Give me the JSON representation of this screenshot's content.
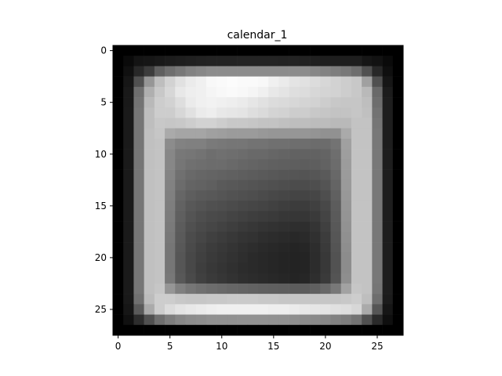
{
  "chart_data": {
    "type": "heatmap",
    "title": "calendar_1",
    "colormap": "gray",
    "rows": 28,
    "cols": 28,
    "x_ticks": [
      0,
      5,
      10,
      15,
      20,
      25
    ],
    "y_ticks": [
      0,
      5,
      10,
      15,
      20,
      25
    ],
    "xlim": [
      -0.5,
      27.5
    ],
    "ylim": [
      27.5,
      -0.5
    ],
    "value_range": [
      0,
      255
    ],
    "values": [
      [
        0,
        0,
        0,
        0,
        0,
        0,
        0,
        0,
        0,
        0,
        0,
        0,
        0,
        0,
        0,
        0,
        0,
        0,
        0,
        0,
        0,
        0,
        0,
        0,
        0,
        0,
        0,
        0
      ],
      [
        0,
        10,
        20,
        22,
        25,
        28,
        30,
        32,
        34,
        35,
        35,
        35,
        36,
        36,
        36,
        36,
        35,
        35,
        34,
        32,
        30,
        30,
        30,
        30,
        22,
        18,
        10,
        0
      ],
      [
        0,
        16,
        40,
        60,
        95,
        110,
        120,
        130,
        135,
        140,
        140,
        140,
        140,
        140,
        140,
        140,
        140,
        140,
        140,
        135,
        130,
        125,
        120,
        110,
        80,
        40,
        15,
        0
      ],
      [
        0,
        22,
        80,
        150,
        190,
        210,
        225,
        235,
        240,
        248,
        250,
        252,
        250,
        250,
        248,
        240,
        235,
        228,
        225,
        220,
        215,
        210,
        205,
        200,
        160,
        80,
        22,
        0
      ],
      [
        0,
        25,
        110,
        175,
        200,
        215,
        232,
        238,
        240,
        245,
        248,
        250,
        248,
        245,
        240,
        232,
        228,
        222,
        220,
        215,
        212,
        210,
        205,
        200,
        185,
        105,
        28,
        0
      ],
      [
        0,
        25,
        115,
        185,
        205,
        210,
        222,
        235,
        240,
        242,
        240,
        238,
        235,
        230,
        225,
        220,
        218,
        215,
        212,
        210,
        205,
        200,
        198,
        198,
        190,
        110,
        30,
        0
      ],
      [
        0,
        26,
        118,
        190,
        205,
        205,
        215,
        225,
        235,
        238,
        232,
        230,
        228,
        222,
        218,
        212,
        210,
        205,
        205,
        200,
        198,
        195,
        195,
        198,
        192,
        115,
        30,
        0
      ],
      [
        0,
        26,
        118,
        190,
        200,
        198,
        200,
        205,
        210,
        210,
        205,
        200,
        200,
        198,
        195,
        195,
        192,
        190,
        190,
        188,
        188,
        185,
        185,
        195,
        195,
        118,
        30,
        0
      ],
      [
        0,
        26,
        118,
        192,
        198,
        170,
        165,
        165,
        165,
        160,
        158,
        155,
        155,
        155,
        152,
        150,
        150,
        150,
        150,
        148,
        145,
        145,
        170,
        195,
        195,
        120,
        30,
        0
      ],
      [
        0,
        26,
        118,
        192,
        195,
        140,
        130,
        128,
        128,
        122,
        120,
        118,
        118,
        115,
        115,
        112,
        112,
        110,
        110,
        108,
        108,
        115,
        160,
        195,
        195,
        120,
        30,
        0
      ],
      [
        0,
        26,
        118,
        192,
        195,
        135,
        120,
        118,
        115,
        110,
        112,
        110,
        108,
        105,
        105,
        102,
        100,
        98,
        98,
        98,
        100,
        110,
        158,
        195,
        195,
        120,
        30,
        0
      ],
      [
        0,
        26,
        118,
        192,
        195,
        135,
        118,
        112,
        110,
        108,
        108,
        105,
        102,
        100,
        98,
        96,
        95,
        94,
        93,
        94,
        98,
        108,
        156,
        195,
        195,
        120,
        30,
        0
      ],
      [
        0,
        26,
        118,
        192,
        195,
        132,
        112,
        105,
        102,
        100,
        98,
        96,
        94,
        92,
        90,
        88,
        86,
        85,
        84,
        86,
        90,
        104,
        155,
        195,
        195,
        120,
        30,
        0
      ],
      [
        0,
        26,
        118,
        192,
        195,
        130,
        108,
        100,
        98,
        95,
        90,
        88,
        86,
        84,
        82,
        80,
        78,
        76,
        76,
        78,
        84,
        100,
        154,
        195,
        195,
        120,
        30,
        0
      ],
      [
        0,
        26,
        118,
        192,
        195,
        128,
        102,
        94,
        90,
        88,
        85,
        82,
        80,
        78,
        75,
        72,
        70,
        68,
        68,
        70,
        78,
        96,
        152,
        195,
        195,
        120,
        30,
        0
      ],
      [
        0,
        26,
        118,
        192,
        195,
        126,
        98,
        88,
        84,
        80,
        78,
        75,
        72,
        70,
        68,
        65,
        62,
        60,
        60,
        64,
        72,
        92,
        150,
        195,
        195,
        120,
        30,
        0
      ],
      [
        0,
        26,
        118,
        192,
        195,
        124,
        95,
        84,
        78,
        74,
        72,
        68,
        65,
        62,
        60,
        58,
        55,
        54,
        54,
        58,
        68,
        90,
        148,
        195,
        195,
        120,
        30,
        0
      ],
      [
        0,
        26,
        118,
        192,
        195,
        122,
        92,
        80,
        74,
        70,
        66,
        62,
        58,
        55,
        52,
        50,
        48,
        46,
        46,
        52,
        64,
        88,
        146,
        195,
        195,
        120,
        30,
        0
      ],
      [
        0,
        26,
        118,
        192,
        195,
        120,
        90,
        76,
        70,
        64,
        60,
        56,
        52,
        50,
        46,
        44,
        42,
        40,
        42,
        48,
        60,
        86,
        144,
        195,
        195,
        120,
        30,
        0
      ],
      [
        0,
        26,
        118,
        192,
        195,
        118,
        88,
        74,
        66,
        60,
        56,
        52,
        48,
        45,
        42,
        40,
        38,
        36,
        38,
        45,
        58,
        84,
        142,
        195,
        195,
        120,
        30,
        0
      ],
      [
        0,
        26,
        118,
        192,
        195,
        118,
        86,
        72,
        64,
        58,
        54,
        50,
        46,
        42,
        40,
        38,
        36,
        35,
        36,
        44,
        56,
        82,
        140,
        195,
        195,
        120,
        30,
        0
      ],
      [
        0,
        26,
        118,
        192,
        195,
        118,
        86,
        72,
        62,
        56,
        52,
        48,
        44,
        42,
        40,
        38,
        36,
        35,
        36,
        44,
        56,
        82,
        140,
        195,
        195,
        120,
        30,
        0
      ],
      [
        0,
        26,
        118,
        192,
        195,
        120,
        88,
        74,
        64,
        58,
        54,
        50,
        46,
        44,
        42,
        40,
        38,
        36,
        38,
        46,
        58,
        84,
        142,
        195,
        195,
        120,
        30,
        0
      ],
      [
        0,
        26,
        118,
        192,
        198,
        150,
        128,
        118,
        112,
        108,
        105,
        102,
        100,
        98,
        96,
        95,
        94,
        92,
        92,
        96,
        104,
        120,
        162,
        198,
        195,
        118,
        30,
        0
      ],
      [
        0,
        25,
        112,
        188,
        205,
        205,
        200,
        198,
        198,
        200,
        200,
        202,
        202,
        202,
        200,
        200,
        198,
        198,
        198,
        198,
        198,
        198,
        200,
        205,
        190,
        110,
        28,
        0
      ],
      [
        0,
        22,
        90,
        170,
        205,
        220,
        228,
        232,
        235,
        238,
        240,
        240,
        240,
        240,
        240,
        238,
        238,
        235,
        232,
        230,
        228,
        225,
        222,
        215,
        170,
        85,
        22,
        0
      ],
      [
        0,
        16,
        45,
        80,
        110,
        125,
        135,
        140,
        142,
        145,
        145,
        145,
        146,
        146,
        146,
        145,
        145,
        142,
        140,
        138,
        135,
        130,
        125,
        115,
        80,
        42,
        15,
        0
      ],
      [
        0,
        0,
        0,
        0,
        0,
        0,
        0,
        0,
        0,
        0,
        0,
        0,
        0,
        0,
        0,
        0,
        0,
        0,
        0,
        0,
        0,
        0,
        0,
        0,
        0,
        0,
        0,
        0
      ]
    ]
  }
}
